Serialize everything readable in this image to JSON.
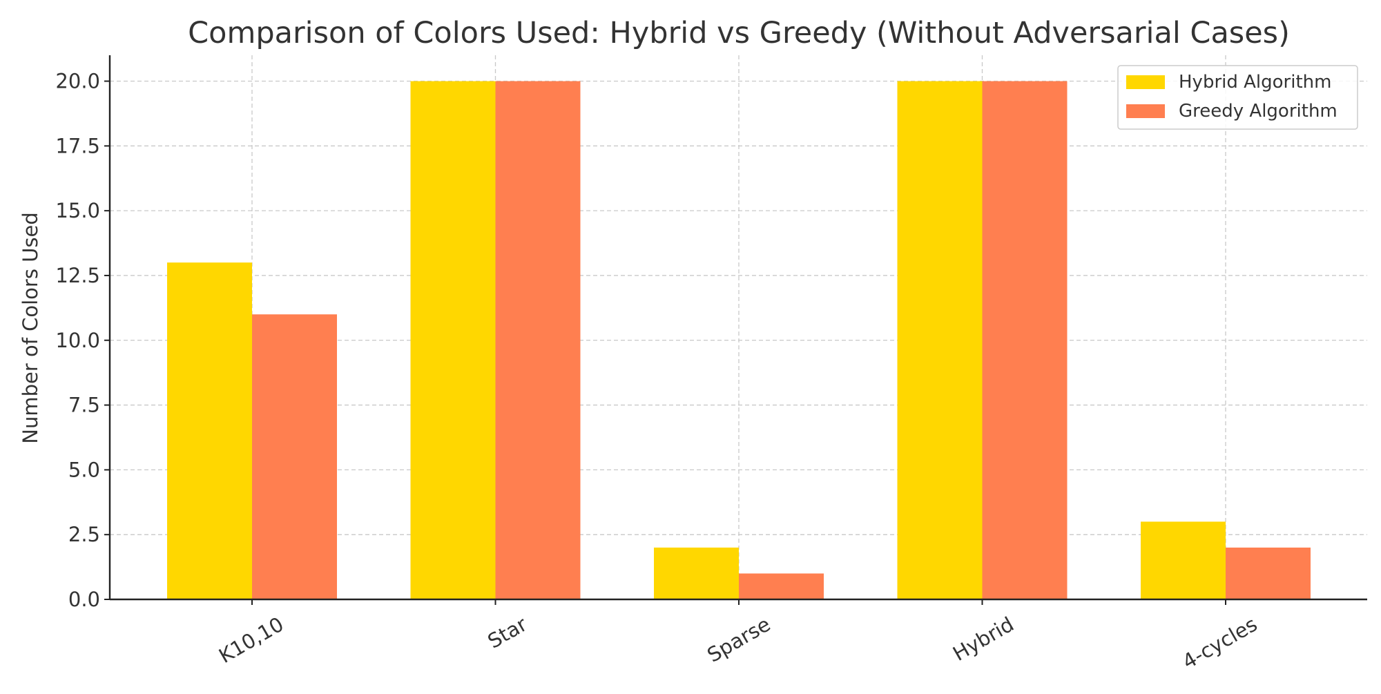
{
  "chart_data": {
    "type": "bar",
    "title": "Comparison of Colors Used: Hybrid vs Greedy (Without Adversarial Cases)",
    "xlabel": "",
    "ylabel": "Number of Colors Used",
    "categories": [
      "K10,10",
      "Star",
      "Sparse",
      "Hybrid",
      "4-cycles"
    ],
    "series": [
      {
        "name": "Hybrid Algorithm",
        "color": "#FFD700",
        "values": [
          13,
          20,
          2,
          20,
          3
        ]
      },
      {
        "name": "Greedy Algorithm",
        "color": "#FF7F50",
        "values": [
          11,
          20,
          1,
          20,
          2
        ]
      }
    ],
    "ylim": [
      0,
      21
    ],
    "yticks": [
      0,
      2.5,
      5,
      7.5,
      10,
      12.5,
      15,
      17.5,
      20
    ],
    "ytick_labels": [
      "0.0",
      "2.5",
      "5.0",
      "7.5",
      "10.0",
      "12.5",
      "15.0",
      "17.5",
      "20.0"
    ],
    "grid": true,
    "legend_position": "top-right"
  }
}
